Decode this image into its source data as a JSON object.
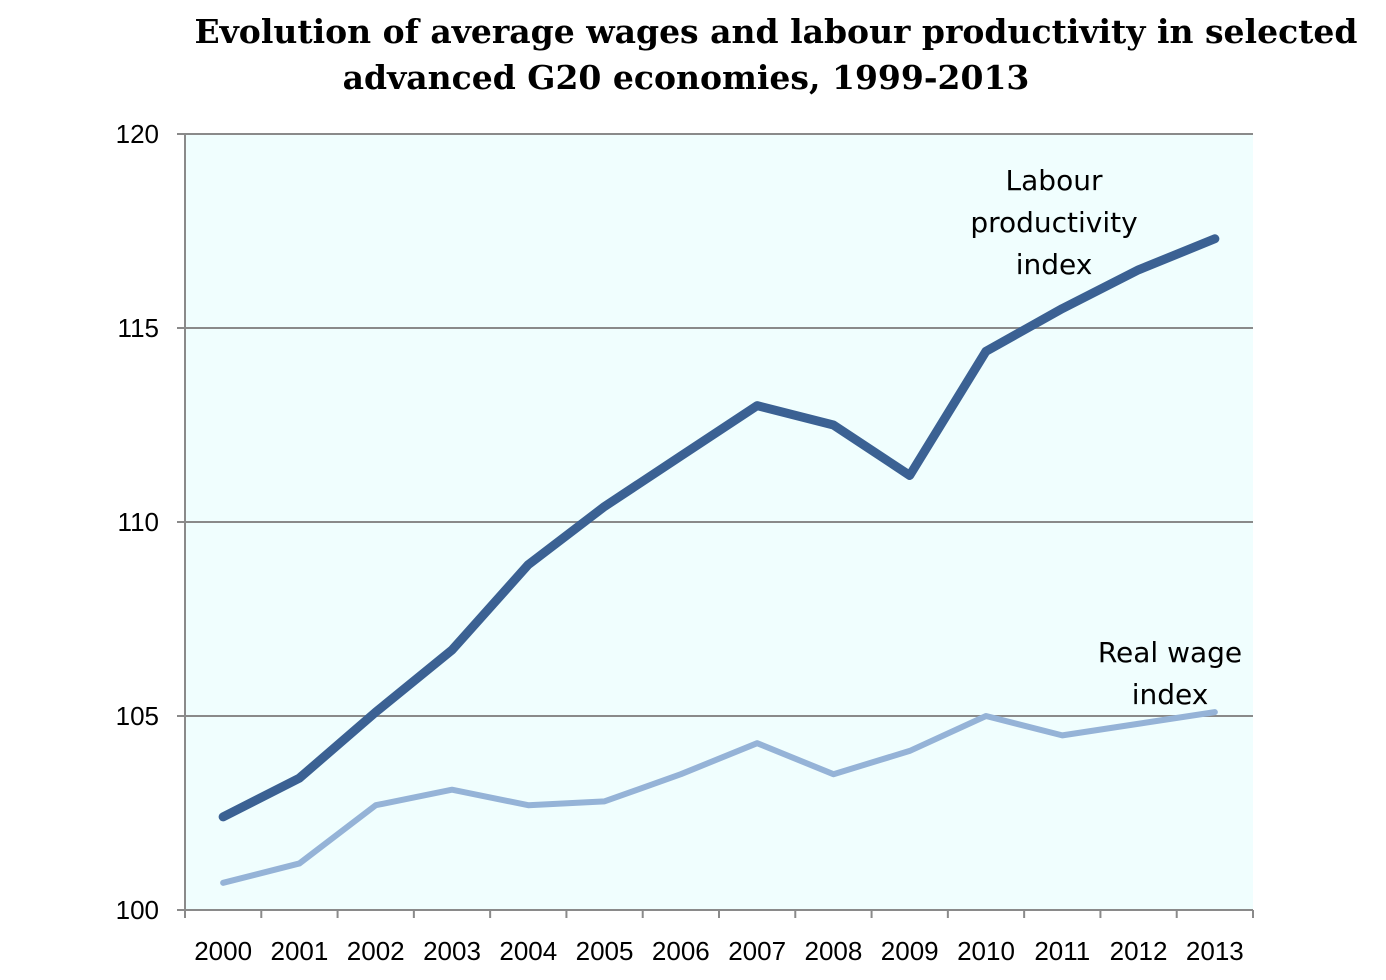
{
  "chart_data": {
    "type": "line",
    "title": [
      "Evolution of average wages and labour productivity in selected",
      "advanced G20 economies, 1999-2013"
    ],
    "xlabel": "",
    "ylabel": "",
    "categories": [
      "2000",
      "2001",
      "2002",
      "2003",
      "2004",
      "2005",
      "2006",
      "2007",
      "2008",
      "2009",
      "2010",
      "2011",
      "2012",
      "2013"
    ],
    "ylim": [
      100,
      120
    ],
    "yticks": [
      "100",
      "105",
      "110",
      "115",
      "120"
    ],
    "grid": true,
    "series": [
      {
        "name": "Labour productivity index",
        "label_lines": [
          "Labour",
          "productivity",
          "index"
        ],
        "color": "#3b6193",
        "values": [
          102.4,
          103.4,
          105.1,
          106.7,
          108.9,
          110.4,
          111.7,
          113.0,
          112.5,
          111.2,
          114.4,
          115.5,
          116.5,
          117.3
        ]
      },
      {
        "name": "Real wage index",
        "label_lines": [
          "Real wage",
          "index"
        ],
        "color": "#95b3d7",
        "values": [
          100.7,
          101.2,
          102.7,
          103.1,
          102.7,
          102.8,
          103.5,
          104.3,
          103.5,
          104.1,
          105.0,
          104.5,
          104.8,
          105.1
        ]
      }
    ],
    "plot_background": "#f0fefe"
  }
}
